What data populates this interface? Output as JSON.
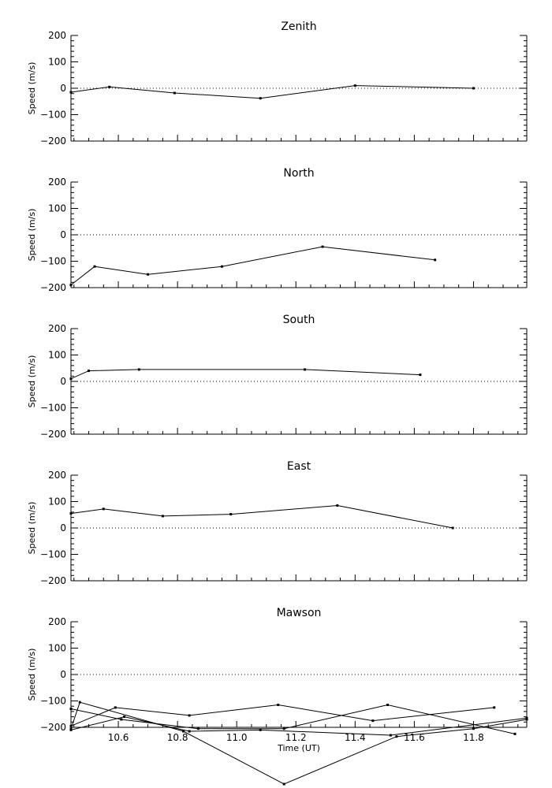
{
  "xlabel": "Time (UT)",
  "chart_data": [
    {
      "type": "line",
      "title": "Zenith",
      "ylabel": "Speed (m/s)",
      "ylim": [
        -200,
        200
      ],
      "yticks": [
        "200",
        "100",
        "0",
        "−100",
        "−200"
      ],
      "ytick_values": [
        200,
        100,
        0,
        -100,
        -200
      ],
      "xlim": [
        10.44,
        11.98
      ],
      "zero_line": "dotted",
      "series": [
        {
          "x": [
            10.44,
            10.57,
            10.79,
            11.08,
            11.4,
            11.8
          ],
          "y": [
            -15,
            5,
            -18,
            -38,
            10,
            0
          ]
        }
      ]
    },
    {
      "type": "line",
      "title": "North",
      "ylabel": "Speed (m/s)",
      "ylim": [
        -200,
        200
      ],
      "yticks": [
        "200",
        "100",
        "0",
        "−100",
        "−200"
      ],
      "ytick_values": [
        200,
        100,
        0,
        -100,
        -200
      ],
      "xlim": [
        10.44,
        11.98
      ],
      "zero_line": "dotted",
      "series": [
        {
          "x": [
            10.44,
            10.52,
            10.7,
            10.95,
            11.29,
            11.67
          ],
          "y": [
            -190,
            -120,
            -150,
            -120,
            -45,
            -95
          ]
        }
      ]
    },
    {
      "type": "line",
      "title": "South",
      "ylabel": "Speed (m/s)",
      "ylim": [
        -200,
        200
      ],
      "yticks": [
        "200",
        "100",
        "0",
        "−100",
        "−200"
      ],
      "ytick_values": [
        200,
        100,
        0,
        -100,
        -200
      ],
      "xlim": [
        10.44,
        11.98
      ],
      "zero_line": "dotted",
      "series": [
        {
          "x": [
            10.44,
            10.5,
            10.67,
            11.23,
            11.62
          ],
          "y": [
            10,
            40,
            45,
            45,
            25
          ]
        }
      ]
    },
    {
      "type": "line",
      "title": "East",
      "ylabel": "Speed (m/s)",
      "ylim": [
        -200,
        200
      ],
      "yticks": [
        "200",
        "100",
        "0",
        "−100",
        "−200"
      ],
      "ytick_values": [
        200,
        100,
        0,
        -100,
        -200
      ],
      "xlim": [
        10.44,
        11.98
      ],
      "zero_line": "dotted",
      "series": [
        {
          "x": [
            10.44,
            10.55,
            10.75,
            10.98,
            11.34,
            11.73
          ],
          "y": [
            55,
            72,
            45,
            52,
            85,
            0
          ]
        }
      ]
    },
    {
      "type": "line",
      "title": "Mawson",
      "ylabel": "Speed (m/s)",
      "ylim": [
        -200,
        200
      ],
      "yticks": [
        "200",
        "100",
        "0",
        "−100",
        "−200"
      ],
      "ytick_values": [
        200,
        100,
        0,
        -100,
        -200
      ],
      "xticks": [
        "10.6",
        "10.8",
        "11.0",
        "11.2",
        "11.4",
        "11.6",
        "11.8"
      ],
      "xtick_values": [
        10.6,
        10.8,
        11.0,
        11.2,
        11.4,
        11.6,
        11.8
      ],
      "xlim": [
        10.44,
        11.98
      ],
      "zero_line": "dotted",
      "series": [
        {
          "x": [
            10.44,
            10.59,
            10.84,
            11.14,
            11.46,
            11.87
          ],
          "y": [
            -195,
            -125,
            -155,
            -115,
            -175,
            -125
          ]
        },
        {
          "x": [
            10.44,
            10.61,
            10.87,
            11.16,
            11.51,
            11.94
          ],
          "y": [
            -130,
            -170,
            -205,
            -205,
            -115,
            -225
          ]
        },
        {
          "x": [
            10.44,
            10.47,
            10.82,
            11.16,
            11.54,
            11.8,
            11.98
          ],
          "y": [
            -205,
            -105,
            -215,
            -415,
            -235,
            -205,
            -170
          ]
        },
        {
          "x": [
            10.44,
            10.62,
            10.84,
            11.08,
            11.52,
            11.98
          ],
          "y": [
            -210,
            -160,
            -215,
            -210,
            -230,
            -165
          ]
        }
      ]
    }
  ]
}
